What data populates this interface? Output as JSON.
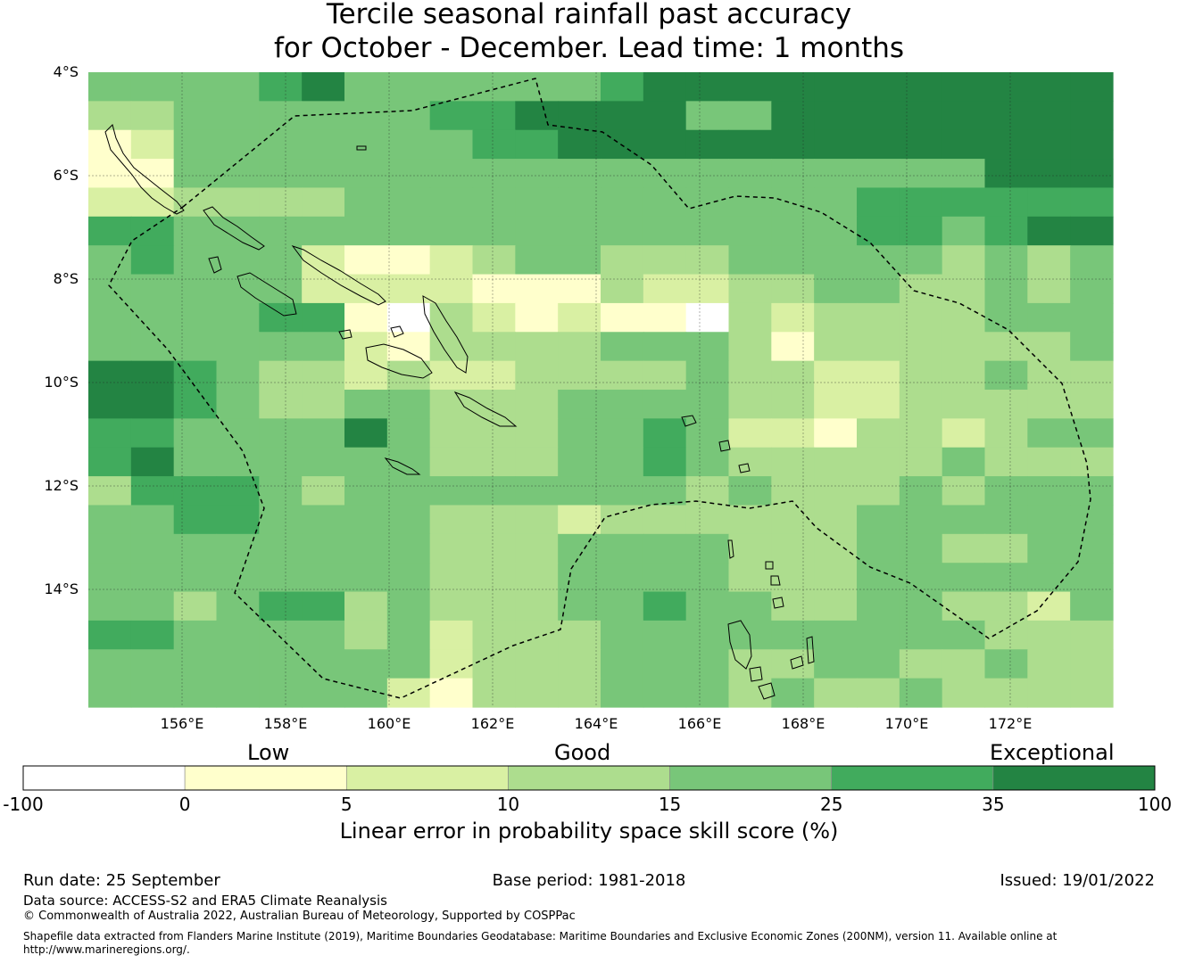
{
  "title": {
    "line1": "Tercile seasonal rainfall past accuracy",
    "line2": "for October - December. Lead time: 1 months"
  },
  "axes": {
    "lat_labels": [
      "4°S",
      "6°S",
      "8°S",
      "10°S",
      "12°S",
      "14°S"
    ],
    "lon_labels": [
      "156°E",
      "158°E",
      "160°E",
      "162°E",
      "164°E",
      "166°E",
      "168°E",
      "170°E",
      "172°E"
    ]
  },
  "colorbar": {
    "categories": [
      "Low",
      "Good",
      "Exceptional"
    ],
    "ticks": [
      "-100",
      "0",
      "5",
      "10",
      "15",
      "25",
      "35",
      "100"
    ],
    "colors": [
      "#ffffff",
      "#ffffcc",
      "#d9f0a3",
      "#addd8e",
      "#78c679",
      "#41ab5d",
      "#238443"
    ],
    "title": "Linear error in probability space skill score (%)"
  },
  "footer": {
    "run_date": "Run date: 25 September",
    "base_period": "Base period: 1981-2018",
    "issued": "Issued: 19/01/2022",
    "data_source": "Data source: ACCESS-S2 and ERA5 Climate Reanalysis",
    "copyright": "© Commonwealth of Australia 2022, Australian Bureau of Meteorology, Supported by COSPPac",
    "shapefile_line1": "Shapefile data extracted from Flanders Marine Institute (2019), Maritime Boundaries Geodatabase: Maritime Boundaries and Exclusive Economic Zones (200NM), version 11. Available online at",
    "shapefile_line2": "http://www.marineregions.org/."
  },
  "map_data": {
    "cols": 24,
    "rows": 22,
    "grid_levels": [
      "444456444444566666666666",
      "334444445566664466666666",
      "124444444556666666666666",
      "114444444444444444444666",
      "223333444444444444555555",
      "554444444444444444554566",
      "454442112344333444443434",
      "444442222111322334433434",
      "444455103212110323333444",
      "444444213333444313333334",
      "665433232233334332233433",
      "665433443334444332233333",
      "554444643334454221332344",
      "564444443334454333334333",
      "355543444444443433343444",
      "445544443332333333444444",
      "444444443334444333443344",
      "444444443334444333444444",
      "443455343334454433443324",
      "554444342333444444444333",
      "444444442333444334433433",
      "444444421333444343343333"
    ]
  }
}
